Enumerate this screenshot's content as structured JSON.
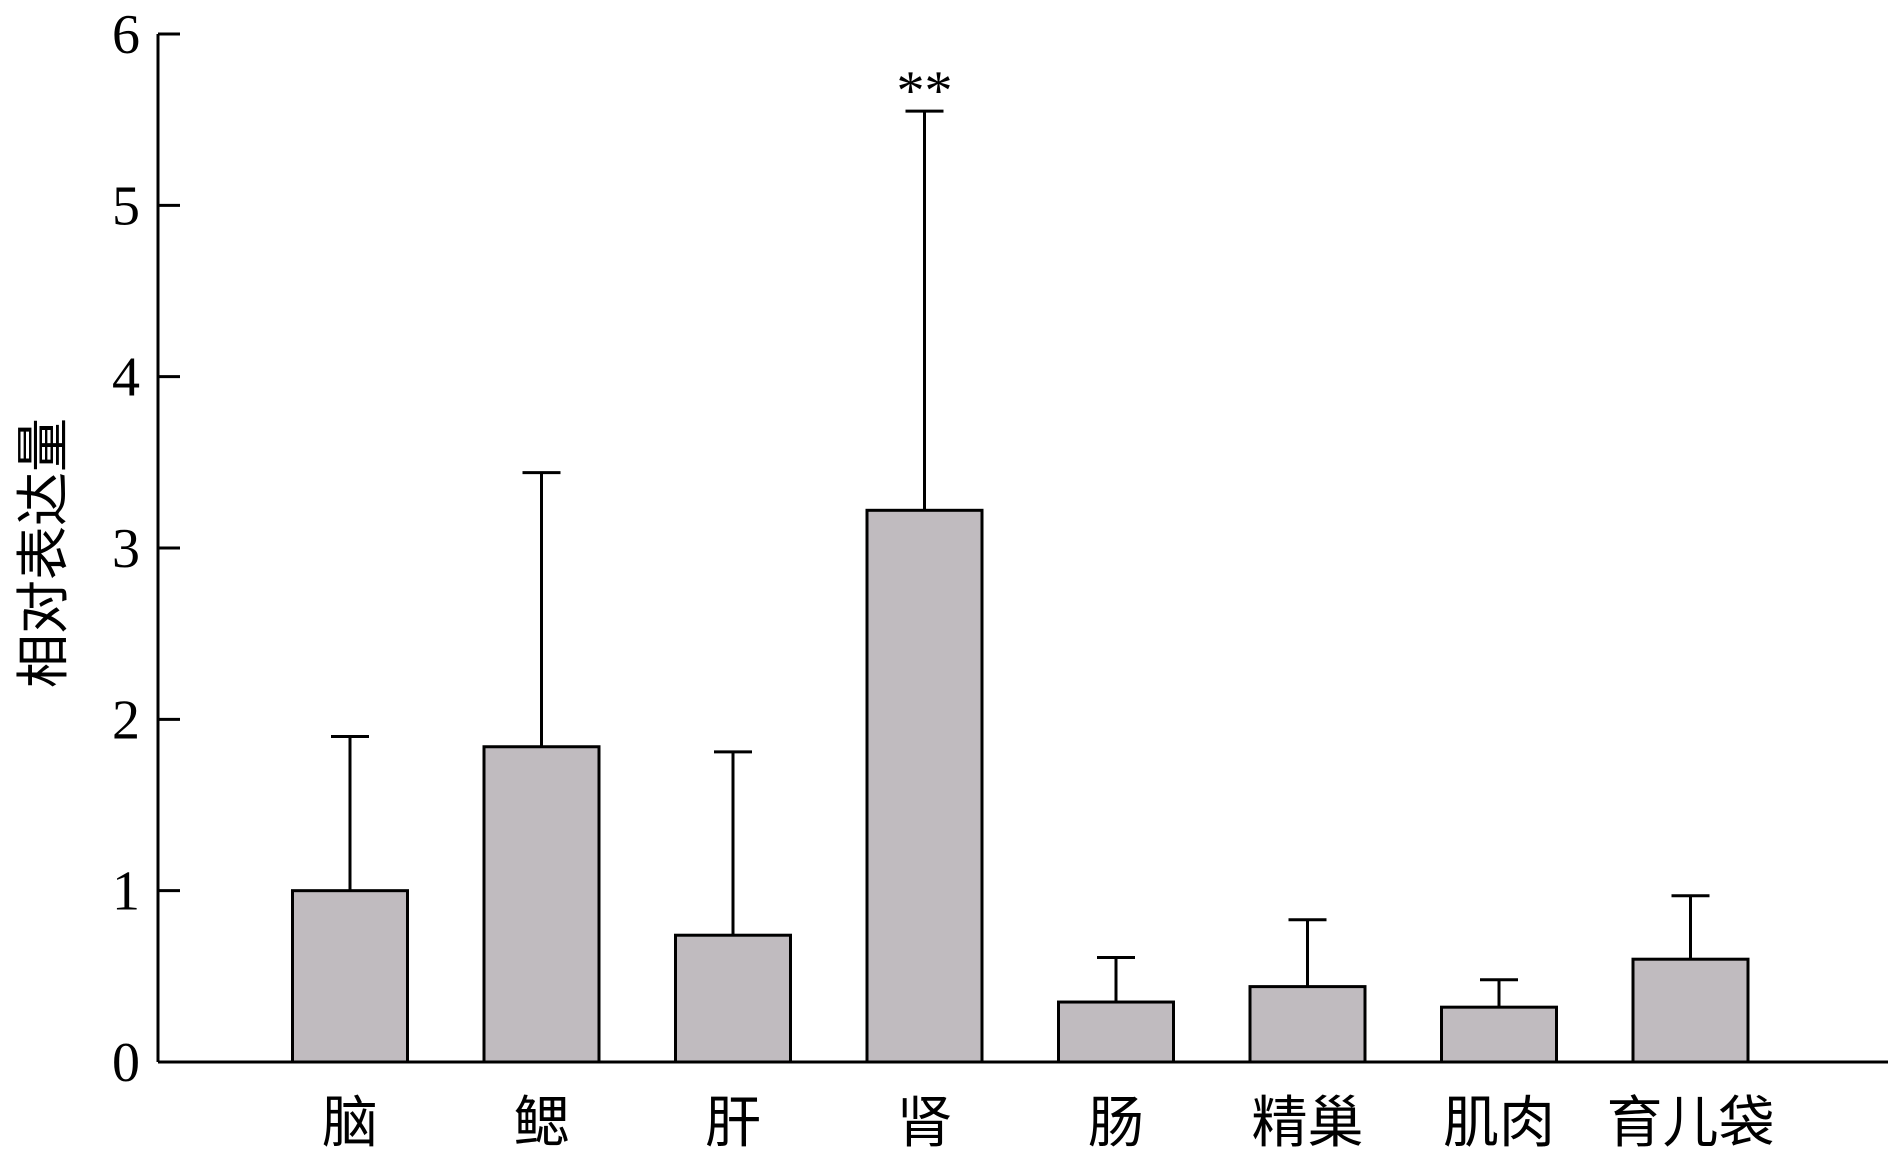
{
  "chart_data": {
    "type": "bar",
    "title": "",
    "xlabel": "",
    "ylabel": "相对表达量",
    "ylim": [
      0,
      6
    ],
    "yticks": [
      0,
      1,
      2,
      3,
      4,
      5,
      6
    ],
    "categories": [
      "脑",
      "鳃",
      "肝",
      "肾",
      "肠",
      "精巢",
      "肌肉",
      "育儿袋"
    ],
    "values": [
      1.0,
      1.84,
      0.74,
      3.22,
      0.35,
      0.44,
      0.32,
      0.6
    ],
    "error_upper": [
      1.9,
      3.44,
      1.81,
      5.55,
      0.61,
      0.83,
      0.48,
      0.97
    ],
    "annotations": [
      {
        "category": "肾",
        "text": "**"
      }
    ],
    "grid": false,
    "legend": "none",
    "colors": {
      "bar_fill": "#c0bbbf",
      "bar_stroke": "#000000",
      "axis": "#000000"
    }
  }
}
